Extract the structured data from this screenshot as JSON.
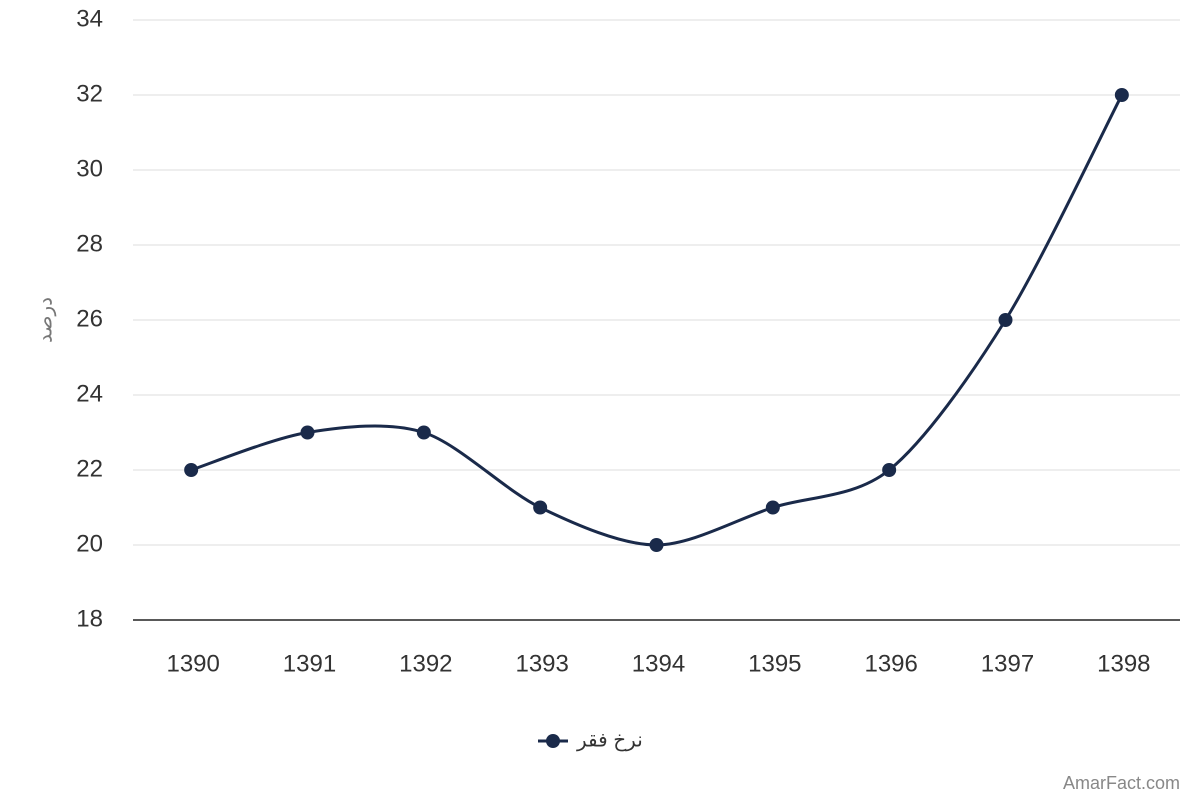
{
  "chart_data": {
    "type": "line",
    "y_label": "درصد",
    "categories": [
      "1390",
      "1391",
      "1392",
      "1393",
      "1394",
      "1395",
      "1396",
      "1397",
      "1398"
    ],
    "series": [
      {
        "name": "نرخ فقر",
        "color": "#1a2a4a",
        "values": [
          22,
          23,
          23,
          21,
          20,
          21,
          22,
          26,
          32
        ]
      }
    ],
    "ylim": [
      18,
      34
    ],
    "yticks": [
      18,
      20,
      22,
      24,
      26,
      28,
      30,
      32,
      34
    ],
    "grid": true,
    "legend": "bottom"
  },
  "watermark": "AmarFact.com"
}
